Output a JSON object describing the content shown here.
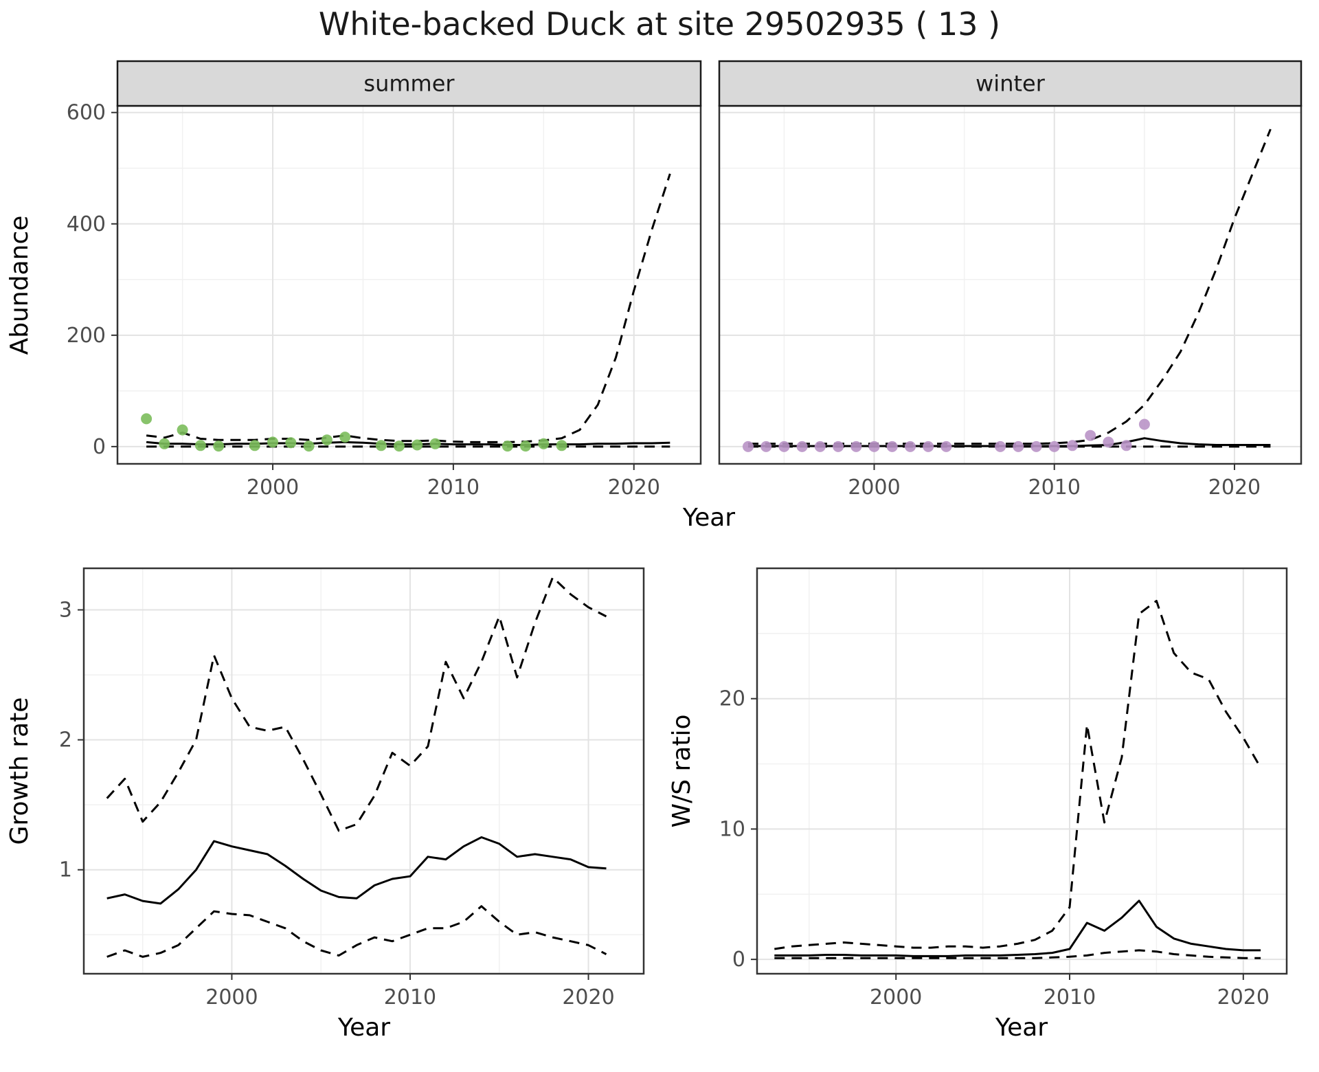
{
  "title": "White-backed Duck at site 29502935 ( 13 )",
  "colors": {
    "line": "#000000",
    "strip_bg": "#d9d9d9",
    "strip_border": "#1a1a1a",
    "panel_border": "#333333",
    "grid_major": "#e3e3e3",
    "grid_minor": "#f1f1f1",
    "tick_text": "#4d4d4d",
    "tick_mark": "#333333",
    "summer_points": "#7bbd5b",
    "winter_points": "#b993c6"
  },
  "chart_data": [
    {
      "id": "abundance",
      "type": "scatter+line",
      "title": "",
      "xlabel": "Year",
      "ylabel": "Abundance",
      "xlim": [
        1991.4,
        2023.7
      ],
      "ylim": [
        -31,
        612
      ],
      "xticks": [
        2000,
        2010,
        2020
      ],
      "xticks_minor": [
        1995,
        2005,
        2015
      ],
      "yticks": [
        0,
        200,
        400,
        600
      ],
      "yticks_minor": [
        100,
        300,
        500
      ],
      "legend": "none",
      "x": [
        1993,
        1994,
        1995,
        1996,
        1997,
        1998,
        1999,
        2000,
        2001,
        2002,
        2003,
        2004,
        2005,
        2006,
        2007,
        2008,
        2009,
        2010,
        2011,
        2012,
        2013,
        2014,
        2015,
        2016,
        2017,
        2018,
        2019,
        2020,
        2021,
        2022
      ],
      "facets": [
        {
          "label": "summer",
          "point_color": "#7bbd5b",
          "points": {
            "x": [
              1993,
              1994,
              1995,
              1996,
              1997,
              1999,
              2000,
              2001,
              2002,
              2003,
              2004,
              2006,
              2007,
              2008,
              2009,
              2013,
              2014,
              2015,
              2016
            ],
            "y": [
              50,
              5,
              30,
              2,
              1,
              2,
              8,
              7,
              1,
              12,
              17,
              2,
              1,
              3,
              5,
              1,
              1,
              5,
              2
            ]
          },
          "series": [
            {
              "name": "fit",
              "style": "solid",
              "y": [
                8,
                5,
                5,
                4,
                4,
                5,
                5,
                6,
                6,
                5,
                7,
                8,
                7,
                5,
                4,
                4,
                5,
                4,
                4,
                4,
                3,
                3,
                4,
                4,
                4,
                5,
                5,
                6,
                6,
                7
              ]
            },
            {
              "name": "upper_ci",
              "style": "dashed",
              "y": [
                20,
                16,
                25,
                14,
                12,
                12,
                12,
                14,
                14,
                12,
                16,
                20,
                15,
                12,
                10,
                10,
                11,
                9,
                8,
                8,
                8,
                9,
                11,
                15,
                30,
                75,
                160,
                280,
                390,
                490
              ]
            },
            {
              "name": "lower_ci",
              "style": "dashed",
              "y": [
                0,
                0,
                0,
                0,
                0,
                0,
                0,
                0,
                0,
                0,
                0,
                0,
                0,
                0,
                0,
                0,
                0,
                0,
                0,
                0,
                0,
                0,
                0,
                0,
                0,
                0,
                0,
                0,
                0,
                0
              ]
            }
          ]
        },
        {
          "label": "winter",
          "point_color": "#b993c6",
          "points": {
            "x": [
              1993,
              1994,
              1995,
              1996,
              1997,
              1998,
              1999,
              2000,
              2001,
              2002,
              2003,
              2004,
              2007,
              2008,
              2009,
              2010,
              2011,
              2012,
              2013,
              2014,
              2015
            ],
            "y": [
              0,
              0,
              0,
              0,
              0,
              0,
              0,
              0,
              0,
              0,
              0,
              0,
              0,
              0,
              0,
              0,
              2,
              20,
              8,
              2,
              40
            ]
          },
          "series": [
            {
              "name": "fit",
              "style": "solid",
              "y": [
                1,
                1,
                1,
                1,
                1,
                1,
                1,
                1,
                1,
                1,
                1,
                1,
                1,
                1,
                1,
                1,
                1,
                1,
                1,
                2,
                3,
                8,
                15,
                10,
                6,
                4,
                3,
                3,
                3,
                3
              ]
            },
            {
              "name": "upper_ci",
              "style": "dashed",
              "y": [
                5,
                5,
                5,
                5,
                5,
                5,
                5,
                5,
                5,
                5,
                5,
                5,
                5,
                5,
                5,
                5,
                5,
                6,
                8,
                12,
                25,
                45,
                75,
                120,
                170,
                240,
                320,
                410,
                490,
                570
              ]
            },
            {
              "name": "lower_ci",
              "style": "dashed",
              "y": [
                0,
                0,
                0,
                0,
                0,
                0,
                0,
                0,
                0,
                0,
                0,
                0,
                0,
                0,
                0,
                0,
                0,
                0,
                0,
                0,
                0,
                0,
                0,
                0,
                0,
                0,
                0,
                0,
                0,
                0
              ]
            }
          ]
        }
      ]
    },
    {
      "id": "growth_rate",
      "type": "line",
      "title": "",
      "xlabel": "Year",
      "ylabel": "Growth rate",
      "xlim": [
        1991.7,
        2023.1
      ],
      "ylim": [
        0.2,
        3.32
      ],
      "xticks": [
        2000,
        2010,
        2020
      ],
      "xticks_minor": [
        1995,
        2005,
        2015
      ],
      "yticks": [
        1,
        2,
        3
      ],
      "yticks_minor": [
        0.5,
        1.5,
        2.5
      ],
      "legend": "none",
      "x": [
        1993,
        1994,
        1995,
        1996,
        1997,
        1998,
        1999,
        2000,
        2001,
        2002,
        2003,
        2004,
        2005,
        2006,
        2007,
        2008,
        2009,
        2010,
        2011,
        2012,
        2013,
        2014,
        2015,
        2016,
        2017,
        2018,
        2019,
        2020,
        2021
      ],
      "series": [
        {
          "name": "fit",
          "style": "solid",
          "y": [
            0.78,
            0.81,
            0.76,
            0.74,
            0.85,
            1.0,
            1.22,
            1.18,
            1.15,
            1.12,
            1.03,
            0.93,
            0.84,
            0.79,
            0.78,
            0.88,
            0.93,
            0.95,
            1.1,
            1.08,
            1.18,
            1.25,
            1.2,
            1.1,
            1.12,
            1.1,
            1.08,
            1.02,
            1.01
          ]
        },
        {
          "name": "upper_ci",
          "style": "dashed",
          "y": [
            1.55,
            1.7,
            1.37,
            1.52,
            1.75,
            2.0,
            2.65,
            2.32,
            2.1,
            2.07,
            2.1,
            1.85,
            1.58,
            1.3,
            1.35,
            1.57,
            1.9,
            1.8,
            1.95,
            2.6,
            2.32,
            2.6,
            2.95,
            2.48,
            2.9,
            3.25,
            3.12,
            3.02,
            2.95
          ]
        },
        {
          "name": "lower_ci",
          "style": "dashed",
          "y": [
            0.33,
            0.38,
            0.33,
            0.36,
            0.42,
            0.55,
            0.68,
            0.66,
            0.65,
            0.6,
            0.55,
            0.45,
            0.38,
            0.34,
            0.42,
            0.48,
            0.45,
            0.5,
            0.55,
            0.55,
            0.6,
            0.72,
            0.6,
            0.5,
            0.52,
            0.48,
            0.45,
            0.42,
            0.35
          ]
        }
      ]
    },
    {
      "id": "ws_ratio",
      "type": "line",
      "title": "",
      "xlabel": "Year",
      "ylabel": "W/S ratio",
      "xlim": [
        1992.0,
        2022.5
      ],
      "ylim": [
        -1.1,
        30
      ],
      "xticks": [
        2000,
        2010,
        2020
      ],
      "xticks_minor": [
        1995,
        2005,
        2015
      ],
      "yticks": [
        0,
        10,
        20
      ],
      "yticks_minor": [
        5,
        15,
        25
      ],
      "legend": "none",
      "x": [
        1993,
        1994,
        1995,
        1996,
        1997,
        1998,
        1999,
        2000,
        2001,
        2002,
        2003,
        2004,
        2005,
        2006,
        2007,
        2008,
        2009,
        2010,
        2011,
        2012,
        2013,
        2014,
        2015,
        2016,
        2017,
        2018,
        2019,
        2020,
        2021
      ],
      "series": [
        {
          "name": "fit",
          "style": "solid",
          "y": [
            0.3,
            0.3,
            0.3,
            0.35,
            0.35,
            0.3,
            0.3,
            0.3,
            0.25,
            0.25,
            0.25,
            0.3,
            0.3,
            0.3,
            0.35,
            0.4,
            0.5,
            0.8,
            2.8,
            2.2,
            3.2,
            4.5,
            2.5,
            1.6,
            1.2,
            1.0,
            0.8,
            0.7,
            0.7
          ]
        },
        {
          "name": "upper_ci",
          "style": "dashed",
          "y": [
            0.8,
            1.0,
            1.1,
            1.2,
            1.3,
            1.2,
            1.1,
            1.0,
            0.9,
            0.9,
            1.0,
            1.0,
            0.9,
            1.0,
            1.2,
            1.5,
            2.2,
            4.0,
            18.0,
            10.5,
            15.5,
            26.5,
            27.5,
            23.5,
            22.0,
            21.5,
            19.0,
            17.0,
            14.7
          ]
        },
        {
          "name": "lower_ci",
          "style": "dashed",
          "y": [
            0.1,
            0.1,
            0.1,
            0.1,
            0.1,
            0.1,
            0.1,
            0.1,
            0.1,
            0.1,
            0.1,
            0.1,
            0.1,
            0.1,
            0.1,
            0.1,
            0.15,
            0.2,
            0.3,
            0.5,
            0.6,
            0.7,
            0.6,
            0.4,
            0.3,
            0.2,
            0.15,
            0.1,
            0.1
          ]
        }
      ]
    }
  ]
}
